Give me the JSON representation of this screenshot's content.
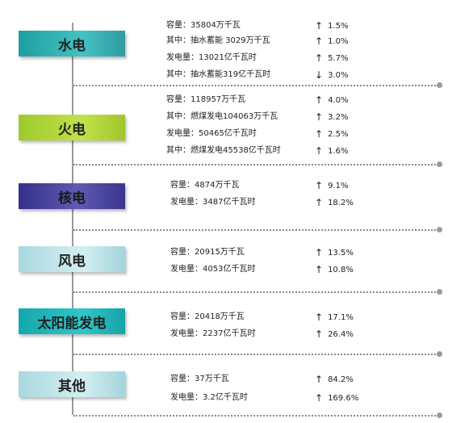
{
  "sections": [
    {
      "name": "水电",
      "rows": [
        {
          "label": "容量：35804万千瓦",
          "dir": "up",
          "value": "1.5%"
        },
        {
          "label": "其中：抽水蓄能 3029万千瓦",
          "dir": "up",
          "value": "1.0%"
        },
        {
          "label": "发电量：13021亿千瓦时",
          "dir": "up",
          "value": "5.7%"
        },
        {
          "label": "其中：抽水蓄能319亿千瓦时",
          "dir": "down",
          "value": "3.0%"
        }
      ]
    },
    {
      "name": "火电",
      "rows": [
        {
          "label": "容量：118957万千瓦",
          "dir": "up",
          "value": "4.0%"
        },
        {
          "label": "其中：燃煤发电104063万千瓦",
          "dir": "up",
          "value": "3.2%"
        },
        {
          "label": "发电量：50465亿千瓦时",
          "dir": "up",
          "value": "2.5%"
        },
        {
          "label": "其中：燃煤发电45538亿千瓦时",
          "dir": "up",
          "value": "1.6%"
        }
      ]
    },
    {
      "name": "核电",
      "rows": [
        {
          "label": "容量：4874万千瓦",
          "dir": "up",
          "value": "9.1%"
        },
        {
          "label": "发电量：3487亿千瓦时",
          "dir": "up",
          "value": "18.2%"
        }
      ]
    },
    {
      "name": "风电",
      "rows": [
        {
          "label": "容量：20915万千瓦",
          "dir": "up",
          "value": "13.5%"
        },
        {
          "label": "发电量：4053亿千瓦时",
          "dir": "up",
          "value": "10.8%"
        }
      ]
    },
    {
      "name": "太阳能发电",
      "rows": [
        {
          "label": "容量：20418万千瓦",
          "dir": "up",
          "value": "17.1%"
        },
        {
          "label": "发电量：2237亿千瓦时",
          "dir": "up",
          "value": "26.4%"
        }
      ]
    },
    {
      "name": "其他",
      "rows": [
        {
          "label": "容量：37万千瓦",
          "dir": "up",
          "value": "84.2%"
        },
        {
          "label": "发电量：3.2亿千瓦时",
          "dir": "up",
          "value": "169.6%"
        }
      ]
    }
  ],
  "icons": {
    "up": "arrow-up-icon",
    "down": "arrow-down-icon"
  }
}
